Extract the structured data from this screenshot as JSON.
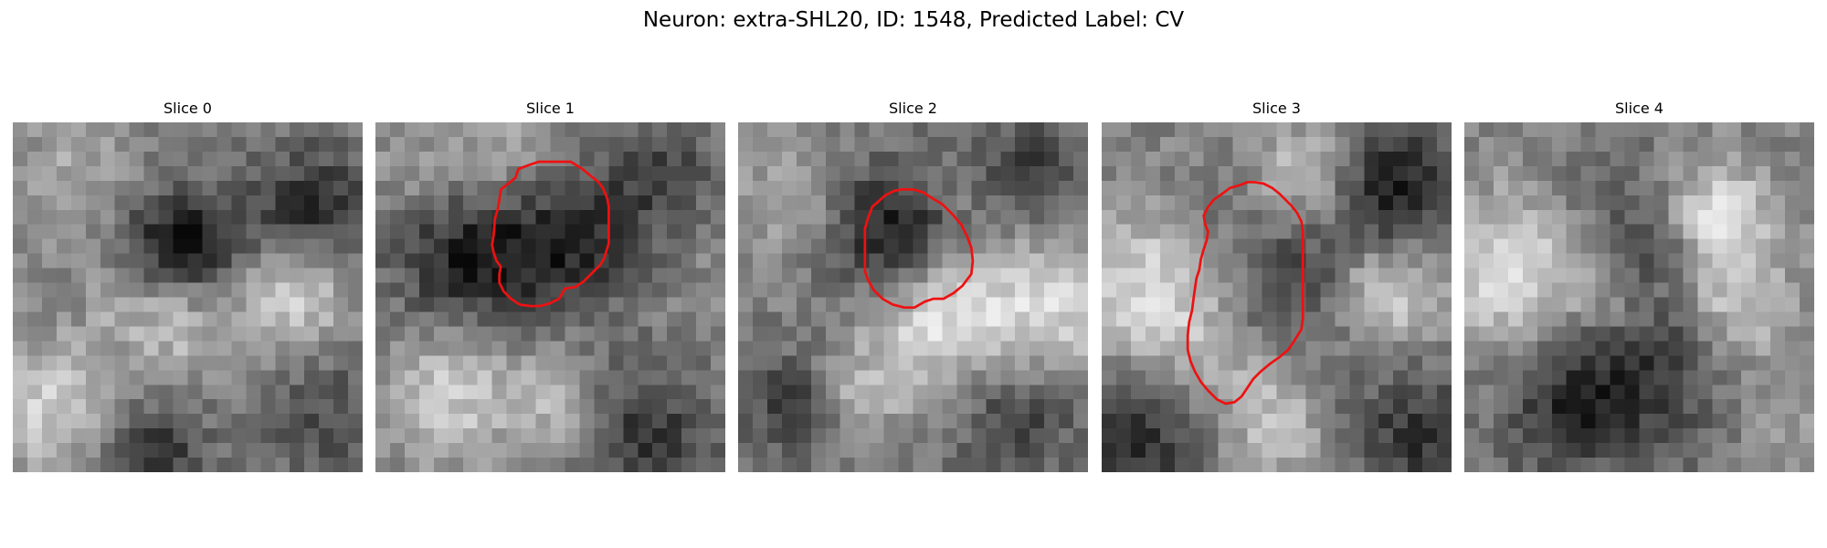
{
  "figure": {
    "title": "Neuron: extra-SHL20, ID: 1548, Predicted Label: CV",
    "contour_color": "#ee1111"
  },
  "panels": [
    {
      "title": "Slice 0",
      "has_contour": false
    },
    {
      "title": "Slice 1",
      "has_contour": true
    },
    {
      "title": "Slice 2",
      "has_contour": true
    },
    {
      "title": "Slice 3",
      "has_contour": true
    },
    {
      "title": "Slice 4",
      "has_contour": false
    }
  ]
}
